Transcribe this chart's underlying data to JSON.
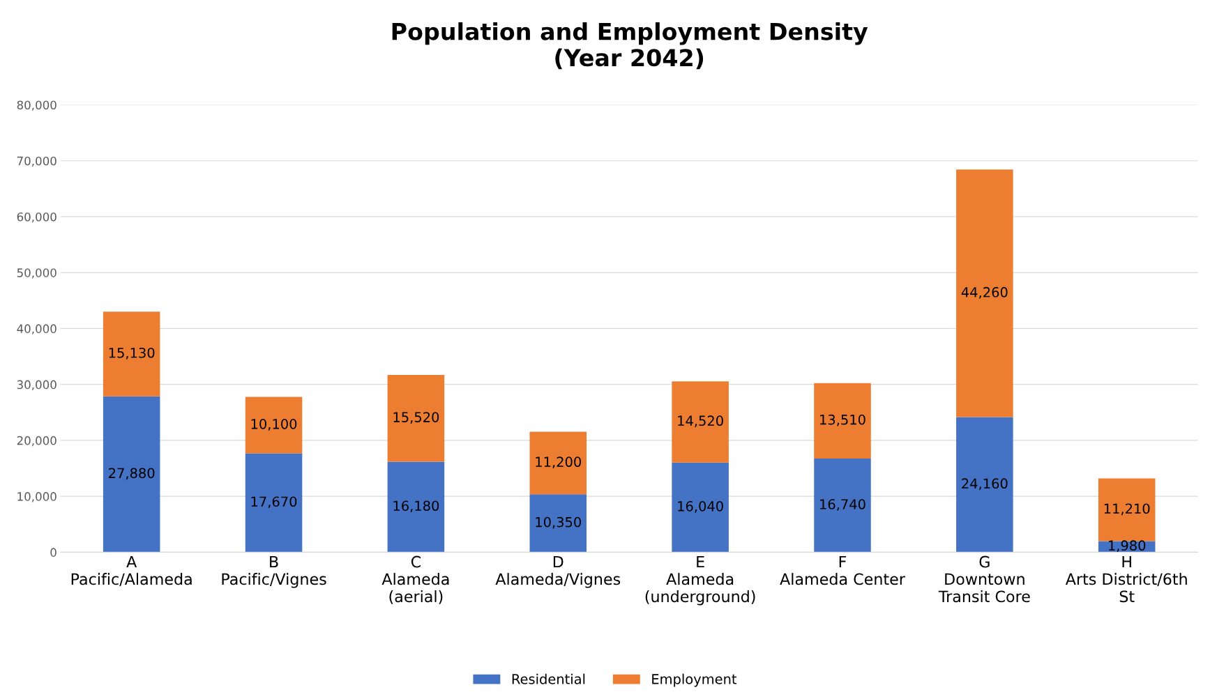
{
  "chart_data": {
    "type": "bar",
    "title": "Population and Employment Density\n(Year 2042)",
    "categories": [
      "A\nPacific/Alameda",
      "B\nPacific/Vignes",
      "C\nAlameda\n(aerial)",
      "D\nAlameda/Vignes",
      "E\nAlameda\n(underground)",
      "F\nAlameda Center",
      "G\nDowntown\nTransit Core",
      "H\nArts District/6th\nSt"
    ],
    "series": [
      {
        "name": "Residential",
        "color": "#4472c4",
        "values": [
          27880,
          17670,
          16180,
          10350,
          16040,
          16740,
          24160,
          1980
        ],
        "value_labels": [
          "27,880",
          "17,670",
          "16,180",
          "10,350",
          "16,040",
          "16,740",
          "24,160",
          "1,980"
        ]
      },
      {
        "name": "Employment",
        "color": "#ed7d31",
        "values": [
          15130,
          10100,
          15520,
          11200,
          14520,
          13510,
          44260,
          11210
        ],
        "value_labels": [
          "15,130",
          "10,100",
          "15,520",
          "11,200",
          "14,520",
          "13,510",
          "44,260",
          "11,210"
        ]
      }
    ],
    "stacked": true,
    "ylim": [
      0,
      80000
    ],
    "yticks": [
      {
        "value": 0,
        "label": "0"
      },
      {
        "value": 10000,
        "label": "10,000"
      },
      {
        "value": 20000,
        "label": "20,000"
      },
      {
        "value": 30000,
        "label": "30,000"
      },
      {
        "value": 40000,
        "label": "40,000"
      },
      {
        "value": 50000,
        "label": "50,000"
      },
      {
        "value": 60000,
        "label": "60,000"
      },
      {
        "value": 70000,
        "label": "70,000"
      },
      {
        "value": 80000,
        "label": "80,000"
      }
    ],
    "grid": "y",
    "legend": "bottom"
  }
}
